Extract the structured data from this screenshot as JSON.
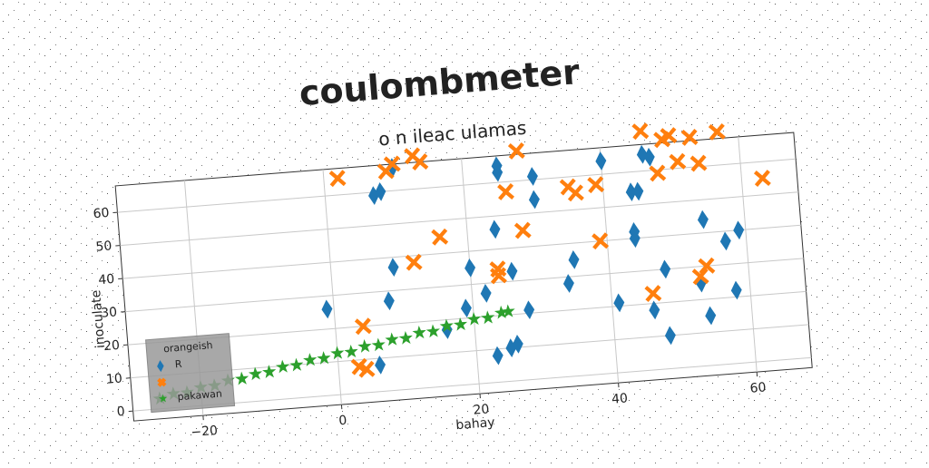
{
  "chart_data": {
    "type": "scatter",
    "title": "coulombmeter",
    "subtitle": "o n ileac ulamas",
    "xlabel": "bahay",
    "ylabel": "inoculate",
    "xlim": [
      -30,
      68
    ],
    "ylim": [
      -3,
      68
    ],
    "xticks": [
      {
        "value": -20,
        "label": "−20"
      },
      0,
      20,
      40,
      60
    ],
    "yticks": [
      0,
      10,
      20,
      30,
      40,
      50,
      60
    ],
    "grid": true,
    "legend_title": "orangeish",
    "legend_loc": "lower left",
    "series": [
      {
        "name": "R",
        "color": "#1f77b4",
        "marker": "diamond",
        "x": [
          -1,
          6,
          7,
          8,
          8,
          9,
          10,
          16,
          19,
          20,
          22,
          23,
          24,
          25,
          25,
          25,
          26,
          26,
          28,
          30,
          30,
          34,
          35,
          40,
          41,
          44,
          44,
          44,
          45,
          46,
          46,
          47,
          48,
          48,
          53,
          54,
          54,
          57,
          58,
          59
        ],
        "y": [
          26,
          8,
          59,
          27,
          60,
          37,
          67,
          17,
          23,
          35,
          27,
          8,
          46,
          10,
          65,
          63,
          11,
          33,
          21,
          61,
          54,
          28,
          35,
          64,
          21,
          54,
          40,
          42,
          54,
          18,
          65,
          64,
          10,
          30,
          25,
          15,
          44,
          37,
          22,
          40
        ]
      },
      {
        "color": "#ff7f0e",
        "marker": "x",
        "x": [
          2,
          3,
          4,
          4,
          9,
          10,
          12,
          13,
          14,
          16,
          24,
          24,
          26,
          28,
          28,
          35,
          36,
          39,
          39,
          46,
          46,
          48,
          49,
          50,
          51,
          53,
          53,
          54,
          54,
          57,
          63
        ],
        "y": [
          65,
          8,
          7,
          20,
          66,
          68,
          38,
          70,
          68,
          45,
          34,
          32,
          57,
          45,
          69,
          57,
          55,
          57,
          40,
          72,
          23,
          59,
          69,
          70,
          62,
          69,
          27,
          61,
          30,
          70,
          55
        ]
      },
      {
        "name": "pakawan",
        "color": "#2ca02c",
        "marker": "star",
        "x": [
          -26,
          -24,
          -22,
          -20,
          -18,
          -16,
          -14,
          -12,
          -10,
          -8,
          -6,
          -4,
          -2,
          0,
          2,
          4,
          6,
          8,
          10,
          12,
          14,
          16,
          18,
          20,
          22,
          24,
          25
        ],
        "y": [
          3.1,
          4.2,
          4.3,
          5.5,
          5.7,
          6.9,
          7.1,
          8.2,
          8.5,
          9.7,
          9.9,
          11.1,
          11.3,
          12.5,
          12.6,
          13.9,
          14.0,
          15.3,
          15.4,
          16.7,
          16.8,
          18.1,
          18.2,
          19.5,
          19.6,
          20.8,
          21.0
        ]
      }
    ]
  }
}
